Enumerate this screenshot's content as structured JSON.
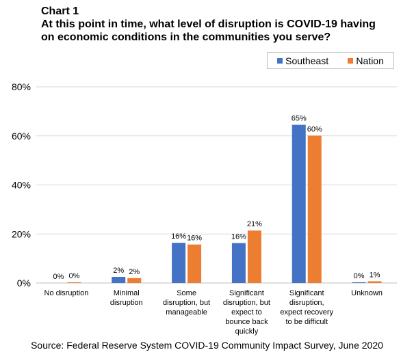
{
  "chart_number": "Chart 1",
  "chart_title_lines": [
    "At this point in time, what level of disruption is COVID-19 having",
    "on economic conditions in the communities you serve?"
  ],
  "source": "Source: Federal Reserve System COVID-19 Community Impact Survey, June 2020",
  "chart_data": {
    "type": "bar",
    "categories": [
      [
        "No disruption"
      ],
      [
        "Minimal",
        "disruption"
      ],
      [
        "Some",
        "disruption, but",
        "manageable"
      ],
      [
        "Significant",
        "disruption, but",
        "expect to",
        "bounce back",
        "quickly"
      ],
      [
        "Significant",
        "disruption,",
        "expect recovery",
        "to be difficult"
      ],
      [
        "Unknown"
      ]
    ],
    "series": [
      {
        "name": "Southeast",
        "color": "#4472c4",
        "values": [
          0,
          2.5,
          16.4,
          16.3,
          64.5,
          0.3
        ],
        "labels": [
          "0%",
          "2%",
          "16%",
          "16%",
          "65%",
          "0%"
        ]
      },
      {
        "name": "Nation",
        "color": "#ed7d31",
        "values": [
          0.3,
          2.0,
          15.7,
          21.4,
          60.1,
          0.7
        ],
        "labels": [
          "0%",
          "2%",
          "16%",
          "21%",
          "60%",
          "1%"
        ]
      }
    ],
    "ylim": [
      0,
      80
    ],
    "yticks": [
      0,
      20,
      40,
      60,
      80
    ],
    "ytick_labels": [
      "0%",
      "20%",
      "40%",
      "60%",
      "80%"
    ],
    "legend_position": "top-right",
    "grid": true
  }
}
